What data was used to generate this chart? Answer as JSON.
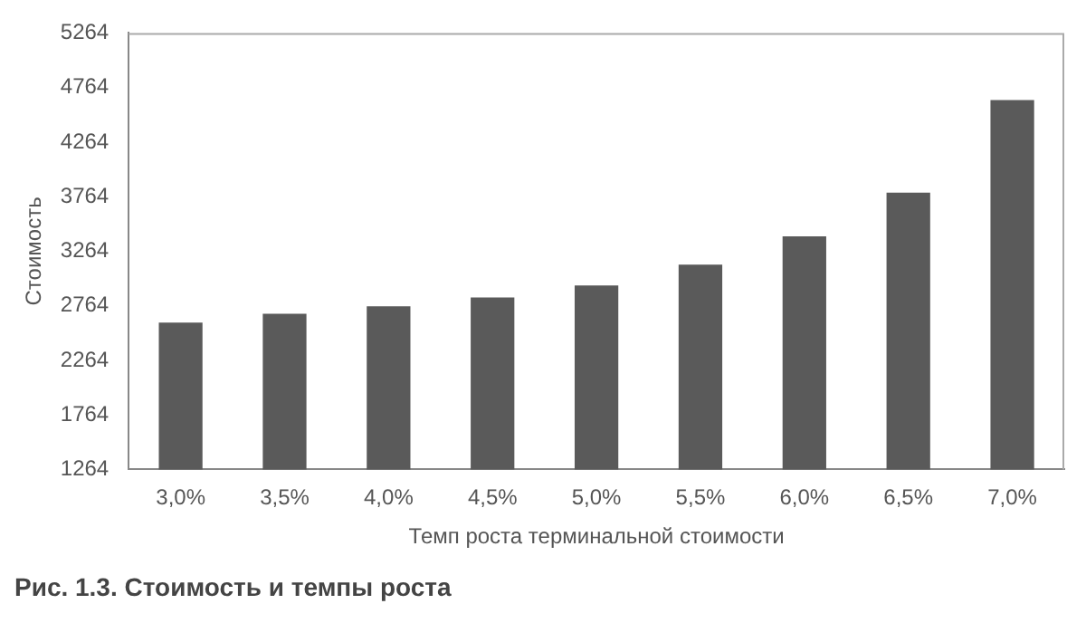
{
  "chart_data": {
    "type": "bar",
    "xlabel": "Темп роста терминальной стоимости",
    "ylabel": "Стоимость",
    "categories": [
      "3,0%",
      "3,5%",
      "4,0%",
      "4,5%",
      "5,0%",
      "5,5%",
      "6,0%",
      "6,5%",
      "7,0%"
    ],
    "values": [
      2610,
      2690,
      2760,
      2840,
      2950,
      3140,
      3400,
      3800,
      4650
    ],
    "color": "#5a5a5a",
    "ylim": [
      1264,
      5264
    ],
    "yticks": [
      1264,
      1764,
      2264,
      2764,
      3264,
      3764,
      4264,
      4764,
      5264
    ],
    "grid": false,
    "legend": false,
    "annotations": [
      "Рис. 1.3. Стоимость и темпы роста"
    ]
  }
}
